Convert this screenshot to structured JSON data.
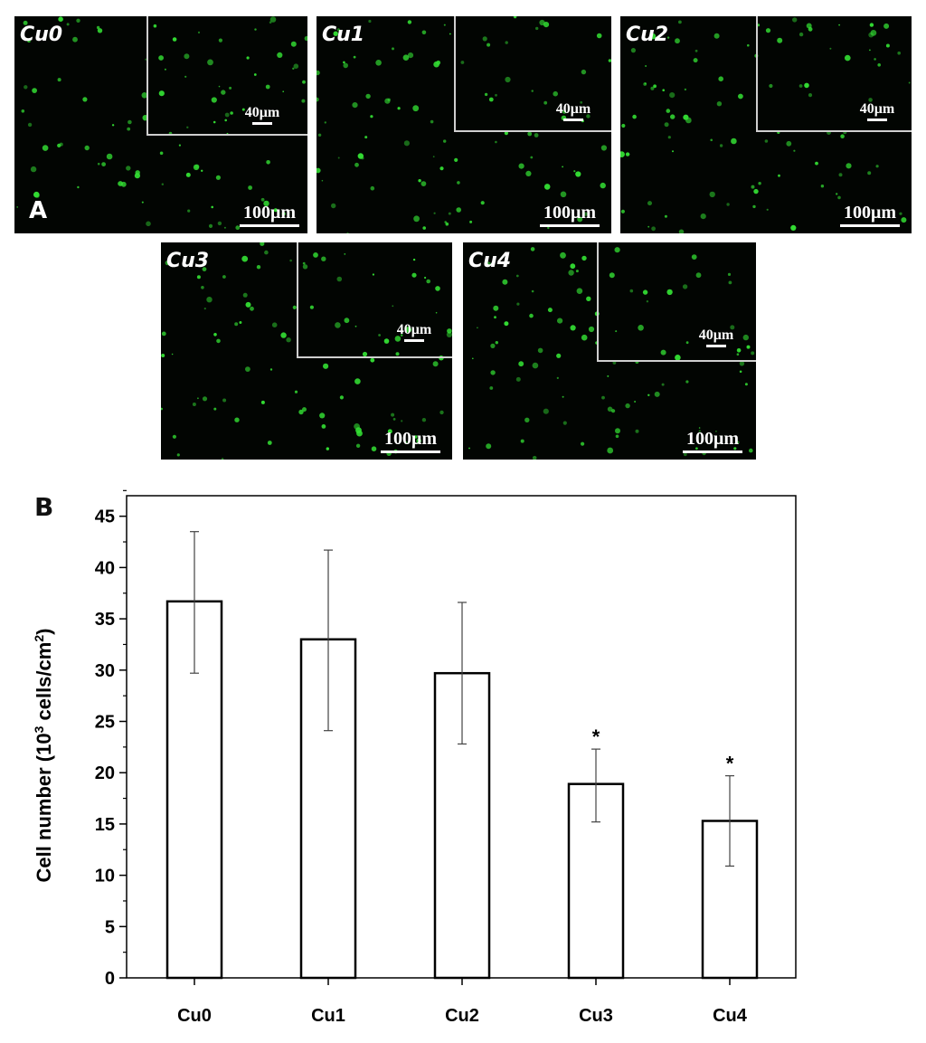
{
  "panel_a": {
    "letter": "A",
    "panels": [
      {
        "label": "Cu0",
        "inset_scale": "40μm",
        "scale": "100μm"
      },
      {
        "label": "Cu1",
        "inset_scale": "40μm",
        "scale": "100μm"
      },
      {
        "label": "Cu2",
        "inset_scale": "40μm",
        "scale": "100μm"
      },
      {
        "label": "Cu3",
        "inset_scale": "40μm",
        "scale": "100μm"
      },
      {
        "label": "Cu4",
        "inset_scale": "40μm",
        "scale": "100μm"
      }
    ],
    "cell_color": "#33dd33"
  },
  "chart_data": {
    "type": "bar",
    "panel_letter": "B",
    "categories": [
      "Cu0",
      "Cu1",
      "Cu2",
      "Cu3",
      "Cu4"
    ],
    "values": [
      36.7,
      33.0,
      29.7,
      18.9,
      15.3
    ],
    "error_high": [
      43.5,
      41.7,
      36.6,
      22.3,
      19.7
    ],
    "error_low": [
      29.7,
      24.1,
      22.8,
      15.2,
      10.9
    ],
    "significance": [
      "",
      "",
      "",
      "*",
      "*"
    ],
    "ylabel_main": "Cell number (10",
    "ylabel_sup1": "3",
    "ylabel_mid": " cells/cm",
    "ylabel_sup2": "2",
    "ylabel_end": ")",
    "ylim": [
      0,
      47
    ],
    "yticks": [
      "0",
      "5",
      "10",
      "15",
      "20",
      "25",
      "30",
      "35",
      "40",
      "45"
    ],
    "bar_fill": "#ffffff",
    "bar_stroke": "#000000",
    "grid": false
  }
}
